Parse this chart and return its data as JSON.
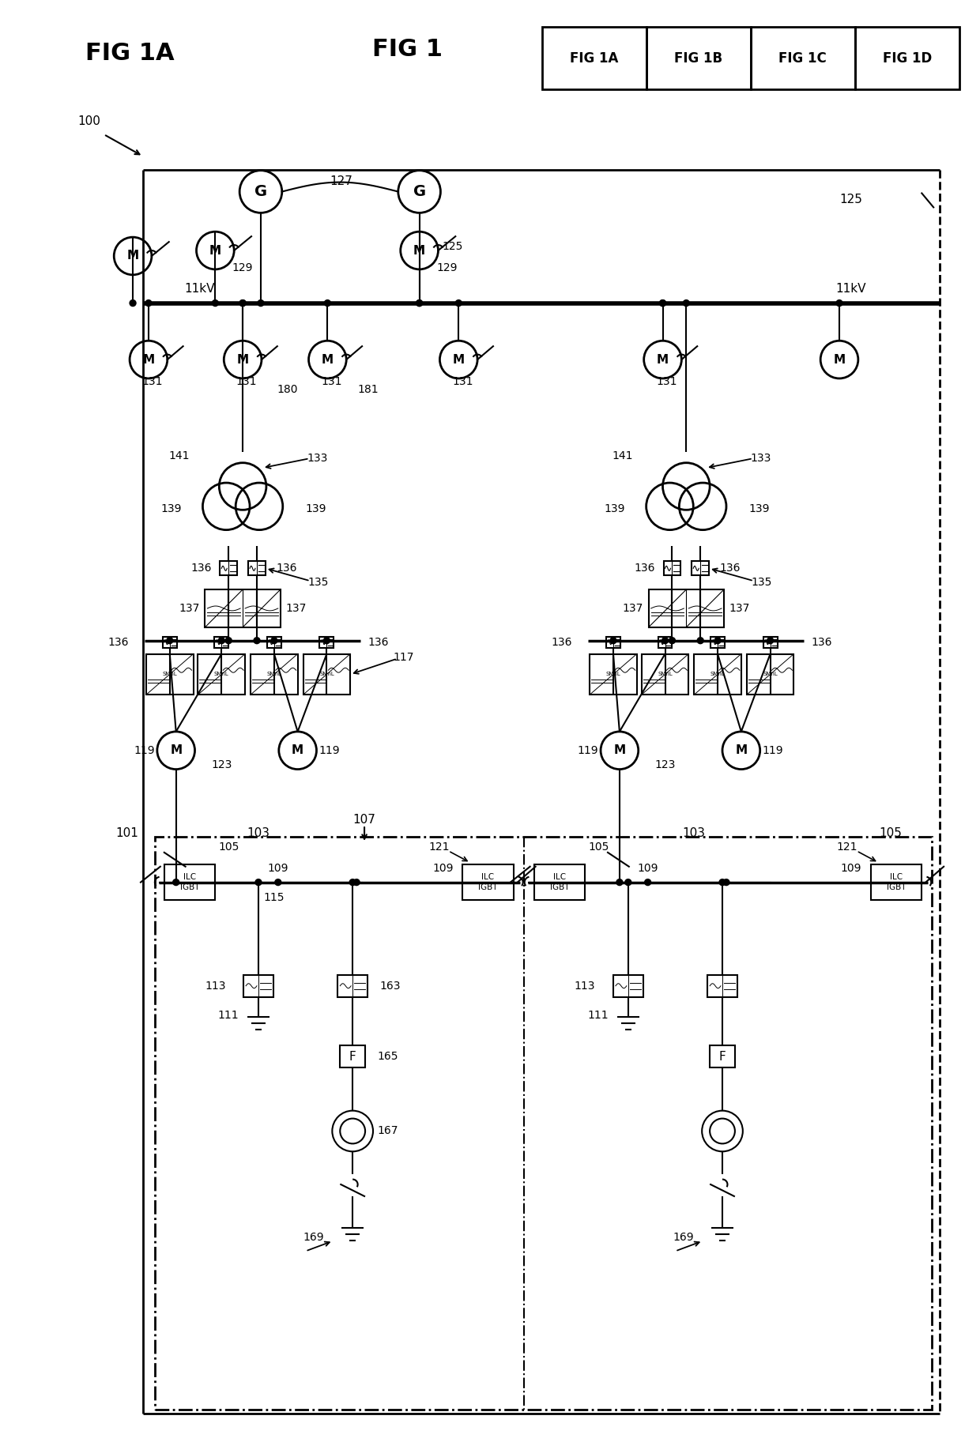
{
  "bg_color": "#ffffff",
  "line_color": "#000000",
  "lw": 1.5,
  "fig_w": 12.4,
  "fig_h": 18.25,
  "dpi": 100,
  "title_left": "FIG 1A",
  "title_right": "FIG 1",
  "fig_table": [
    "FIG 1A",
    "FIG 1B",
    "FIG 1C",
    "FIG 1D"
  ],
  "ref100": "100",
  "labels": {
    "G": "G",
    "M": "M",
    "F": "F",
    "kV_left": "11kV",
    "kV_right": "11kV",
    "n127": "127",
    "n129_1": "129",
    "n129_2": "129",
    "n125_1": "125",
    "n125_2": "125",
    "n131": "131",
    "n180": "180",
    "n181": "181",
    "n141": "141",
    "n133": "133",
    "n139": "139",
    "n136": "136",
    "n135": "135",
    "n137": "137",
    "n117": "117",
    "n119": "119",
    "n123": "123",
    "n101": "101",
    "n103": "103",
    "n105": "105",
    "n107": "107",
    "n109": "109",
    "n111": "111",
    "n113": "113",
    "n115": "115",
    "n121": "121",
    "n163": "163",
    "n165": "165",
    "n167": "167",
    "n169": "169"
  }
}
